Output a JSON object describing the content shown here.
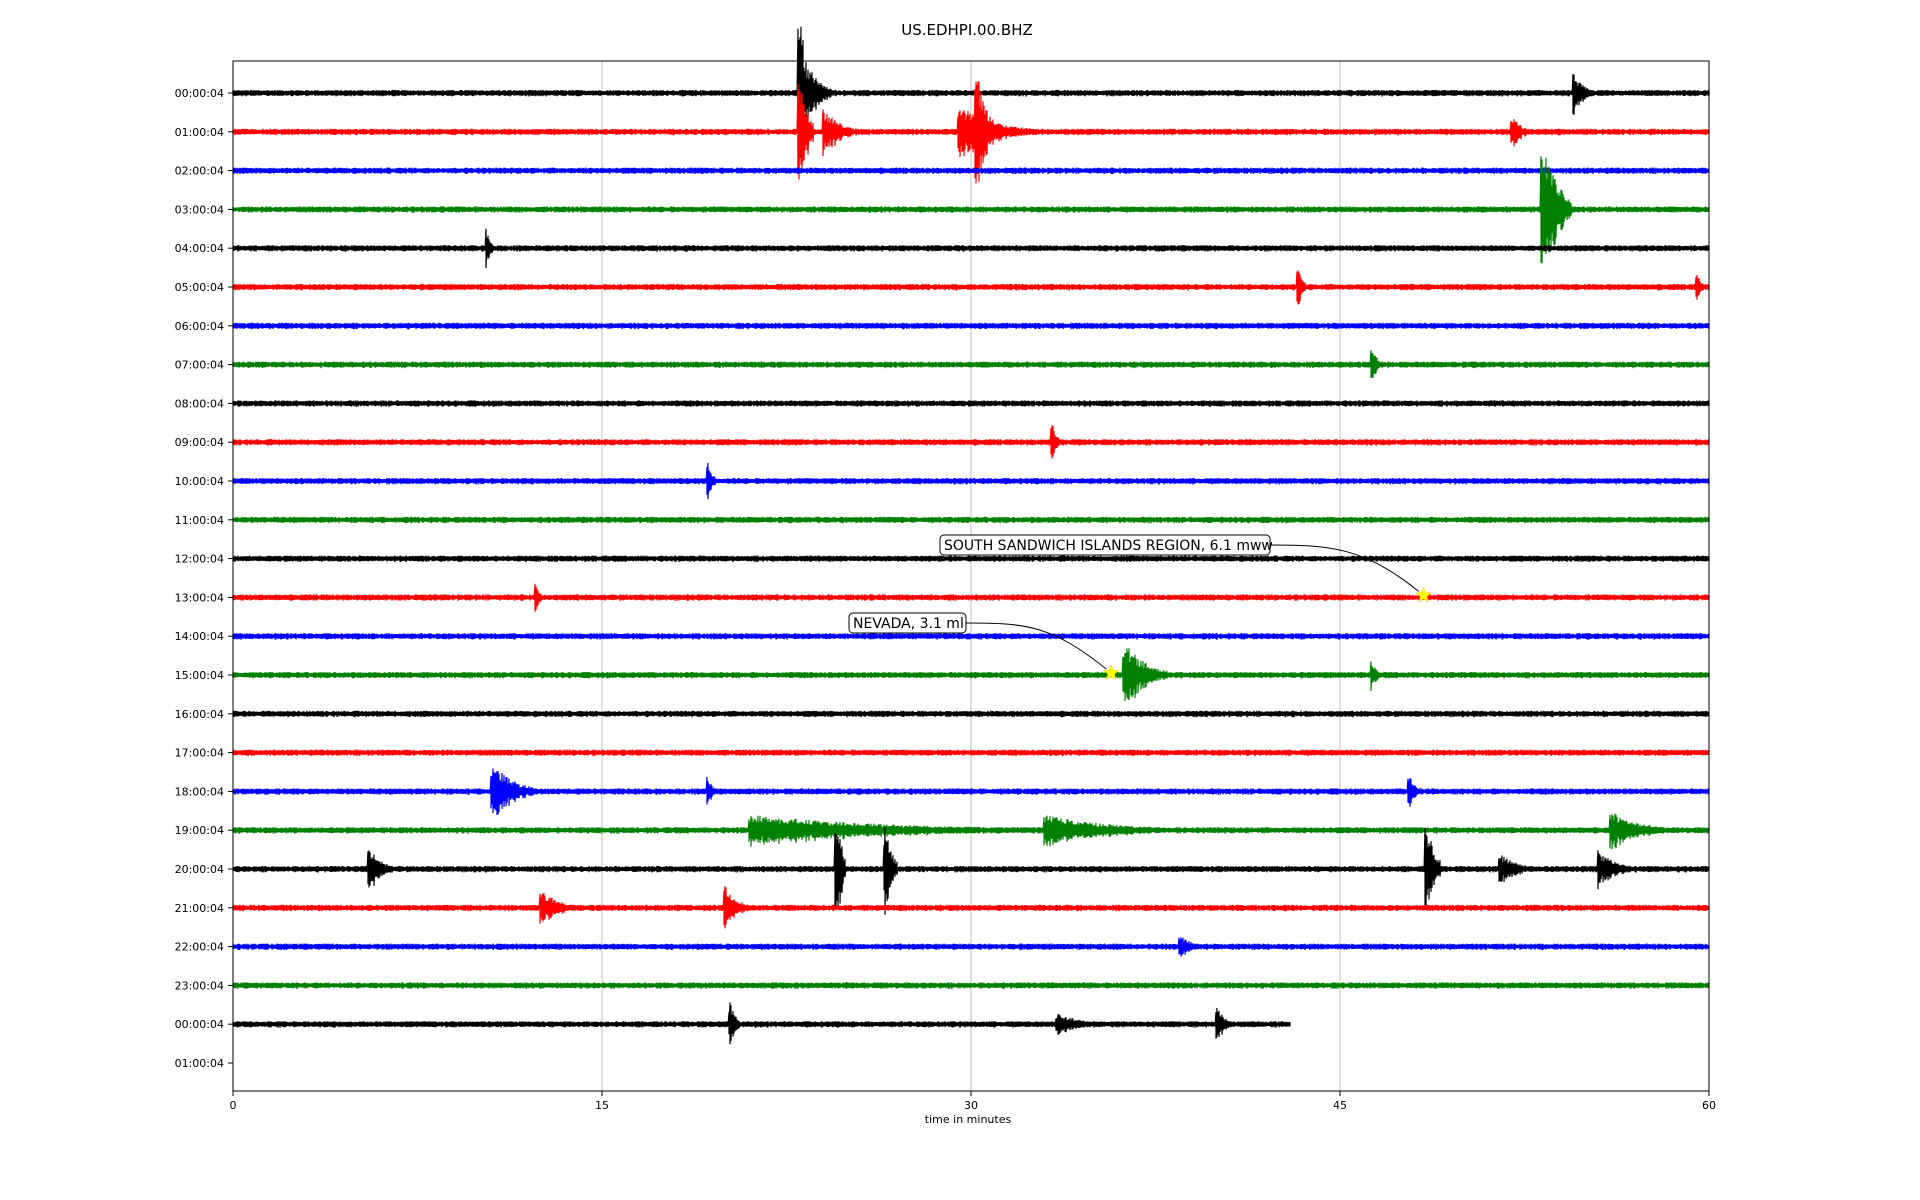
{
  "chart_data": {
    "type": "line",
    "title": "US.EDHPI.00.BHZ",
    "xlabel": "time in minutes",
    "xlim": [
      0,
      60
    ],
    "x_ticks": [
      "0",
      "15",
      "30",
      "45",
      "60"
    ],
    "x_tick_values": [
      0,
      15,
      30,
      45,
      60
    ],
    "grid": "vertical at x ticks",
    "row_labels": [
      "00:00:04",
      "01:00:04",
      "02:00:04",
      "03:00:04",
      "04:00:04",
      "05:00:04",
      "06:00:04",
      "07:00:04",
      "08:00:04",
      "09:00:04",
      "10:00:04",
      "11:00:04",
      "12:00:04",
      "13:00:04",
      "14:00:04",
      "15:00:04",
      "16:00:04",
      "17:00:04",
      "18:00:04",
      "19:00:04",
      "20:00:04",
      "21:00:04",
      "22:00:04",
      "23:00:04",
      "00:00:04",
      "01:00:04"
    ],
    "trace_colors": [
      "#000000",
      "#ff0000",
      "#0000ff",
      "#008000"
    ],
    "traces": [
      {
        "row": 0,
        "end": 60,
        "events": [
          {
            "t": 23.0,
            "amp": 2.6,
            "dur": 0.5
          },
          {
            "t": 23.5,
            "amp": 0.6,
            "dur": 1.0
          },
          {
            "t": 54.5,
            "amp": 0.5,
            "dur": 0.8
          }
        ]
      },
      {
        "row": 1,
        "end": 60,
        "events": [
          {
            "t": 23.0,
            "amp": 1.6,
            "dur": 0.6
          },
          {
            "t": 24.0,
            "amp": 0.6,
            "dur": 1.5
          },
          {
            "t": 29.5,
            "amp": 0.7,
            "dur": 3.0
          },
          {
            "t": 30.2,
            "amp": 1.8,
            "dur": 0.8
          },
          {
            "t": 52.0,
            "amp": 0.4,
            "dur": 0.8
          }
        ]
      },
      {
        "row": 2,
        "end": 60,
        "events": []
      },
      {
        "row": 3,
        "end": 60,
        "events": [
          {
            "t": 53.2,
            "amp": 2.0,
            "dur": 1.2
          }
        ]
      },
      {
        "row": 4,
        "end": 60,
        "events": [
          {
            "t": 10.3,
            "amp": 0.5,
            "dur": 0.3
          }
        ]
      },
      {
        "row": 5,
        "end": 60,
        "events": [
          {
            "t": 43.3,
            "amp": 0.5,
            "dur": 0.3
          },
          {
            "t": 59.5,
            "amp": 0.4,
            "dur": 0.3
          }
        ]
      },
      {
        "row": 6,
        "end": 60,
        "events": []
      },
      {
        "row": 7,
        "end": 60,
        "events": [
          {
            "t": 46.3,
            "amp": 0.6,
            "dur": 0.3
          }
        ]
      },
      {
        "row": 8,
        "end": 60,
        "events": []
      },
      {
        "row": 9,
        "end": 60,
        "events": [
          {
            "t": 33.3,
            "amp": 0.5,
            "dur": 0.3
          }
        ]
      },
      {
        "row": 10,
        "end": 60,
        "events": [
          {
            "t": 19.3,
            "amp": 0.5,
            "dur": 0.3
          }
        ]
      },
      {
        "row": 11,
        "end": 60,
        "events": []
      },
      {
        "row": 12,
        "end": 60,
        "events": []
      },
      {
        "row": 13,
        "end": 60,
        "events": [
          {
            "t": 12.3,
            "amp": 0.4,
            "dur": 0.3
          }
        ]
      },
      {
        "row": 14,
        "end": 60,
        "events": []
      },
      {
        "row": 15,
        "end": 60,
        "events": [
          {
            "t": 36.2,
            "amp": 0.9,
            "dur": 1.8
          },
          {
            "t": 46.3,
            "amp": 0.4,
            "dur": 0.3
          }
        ]
      },
      {
        "row": 16,
        "end": 60,
        "events": []
      },
      {
        "row": 17,
        "end": 60,
        "events": []
      },
      {
        "row": 18,
        "end": 60,
        "events": [
          {
            "t": 10.5,
            "amp": 0.8,
            "dur": 1.8
          },
          {
            "t": 19.3,
            "amp": 0.4,
            "dur": 0.3
          },
          {
            "t": 47.8,
            "amp": 0.5,
            "dur": 0.5
          }
        ]
      },
      {
        "row": 19,
        "end": 60,
        "events": [
          {
            "t": 21.0,
            "amp": 0.4,
            "dur": 13.0
          },
          {
            "t": 33.0,
            "amp": 0.4,
            "dur": 6.0
          },
          {
            "t": 56.0,
            "amp": 0.5,
            "dur": 2.5
          }
        ]
      },
      {
        "row": 20,
        "end": 60,
        "events": [
          {
            "t": 5.5,
            "amp": 0.6,
            "dur": 1.0
          },
          {
            "t": 24.5,
            "amp": 1.8,
            "dur": 0.4
          },
          {
            "t": 26.5,
            "amp": 1.2,
            "dur": 0.5
          },
          {
            "t": 48.5,
            "amp": 1.4,
            "dur": 0.6
          },
          {
            "t": 51.5,
            "amp": 0.4,
            "dur": 1.5
          },
          {
            "t": 55.5,
            "amp": 0.5,
            "dur": 1.5
          }
        ]
      },
      {
        "row": 21,
        "end": 60,
        "events": [
          {
            "t": 12.5,
            "amp": 0.5,
            "dur": 1.5
          },
          {
            "t": 20.0,
            "amp": 0.6,
            "dur": 1.0
          }
        ]
      },
      {
        "row": 22,
        "end": 60,
        "events": [
          {
            "t": 38.5,
            "amp": 0.3,
            "dur": 1.0
          }
        ]
      },
      {
        "row": 23,
        "end": 60,
        "events": []
      },
      {
        "row": 24,
        "end": 43,
        "events": [
          {
            "t": 20.2,
            "amp": 0.6,
            "dur": 0.4
          },
          {
            "t": 33.5,
            "amp": 0.3,
            "dur": 2.0
          },
          {
            "t": 40.0,
            "amp": 0.5,
            "dur": 0.6
          }
        ]
      }
    ],
    "annotations": [
      {
        "text": "SOUTH SANDWICH ISLANDS REGION, 6.1 mww",
        "row": 13,
        "x": 48.4
      },
      {
        "text": "NEVADA, 3.1 ml",
        "row": 15,
        "x": 35.7
      }
    ]
  }
}
